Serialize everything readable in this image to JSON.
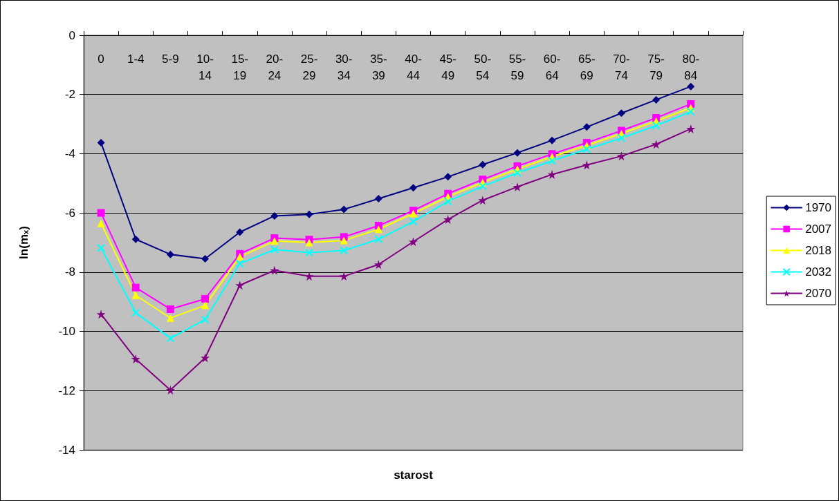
{
  "chart_data": {
    "type": "line",
    "xlabel": "starost",
    "ylabel": "ln(mₓ)",
    "categories": [
      "0",
      "1-4",
      "5-9",
      "10-14",
      "15-19",
      "20-24",
      "25-29",
      "30-34",
      "35-39",
      "40-44",
      "45-49",
      "50-54",
      "55-59",
      "60-64",
      "65-69",
      "70-74",
      "75-79",
      "80-84",
      null
    ],
    "series": [
      {
        "name": "1970",
        "color": "#000080",
        "marker": "diamond",
        "values": [
          -3.63,
          -6.89,
          -7.4,
          -7.55,
          -6.65,
          -6.1,
          -6.05,
          -5.88,
          -5.52,
          -5.15,
          -4.78,
          -4.37,
          -3.97,
          -3.55,
          -3.1,
          -2.63,
          -2.18,
          -1.73,
          null
        ]
      },
      {
        "name": "2007",
        "color": "#ff00ff",
        "marker": "square",
        "values": [
          -6.0,
          -8.52,
          -9.25,
          -8.9,
          -7.38,
          -6.85,
          -6.9,
          -6.81,
          -6.43,
          -5.92,
          -5.35,
          -4.87,
          -4.42,
          -4.01,
          -3.63,
          -3.22,
          -2.79,
          -2.32,
          null
        ]
      },
      {
        "name": "2018",
        "color": "#ffff00",
        "marker": "triangle",
        "values": [
          -6.35,
          -8.78,
          -9.55,
          -9.12,
          -7.48,
          -6.95,
          -7.0,
          -6.93,
          -6.55,
          -6.02,
          -5.45,
          -4.97,
          -4.52,
          -4.1,
          -3.72,
          -3.32,
          -2.9,
          -2.45,
          null
        ]
      },
      {
        "name": "2032",
        "color": "#00ffff",
        "marker": "cross",
        "values": [
          -7.18,
          -9.37,
          -10.23,
          -9.6,
          -7.71,
          -7.24,
          -7.34,
          -7.27,
          -6.89,
          -6.29,
          -5.61,
          -5.1,
          -4.65,
          -4.24,
          -3.85,
          -3.47,
          -3.05,
          -2.58,
          null
        ]
      },
      {
        "name": "2070",
        "color": "#800080",
        "marker": "star",
        "values": [
          -9.42,
          -10.93,
          -11.98,
          -10.89,
          -8.44,
          -7.94,
          -8.14,
          -8.14,
          -7.74,
          -6.97,
          -6.22,
          -5.57,
          -5.12,
          -4.7,
          -4.38,
          -4.08,
          -3.68,
          -3.16,
          null
        ]
      }
    ],
    "ylim": [
      -14,
      0
    ],
    "yticks": [
      -14,
      -12,
      -10,
      -8,
      -6,
      -4,
      -2,
      0
    ],
    "grid": "y",
    "legend": "right",
    "line_style": "solid"
  }
}
